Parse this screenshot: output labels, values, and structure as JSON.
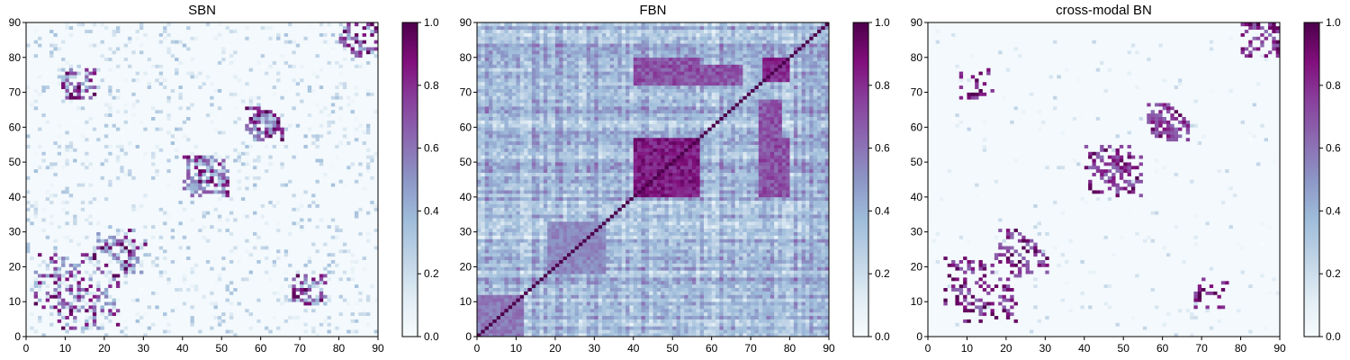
{
  "colormap": [
    "#f7fcfd",
    "#e0ecf4",
    "#bfd3e6",
    "#9ebcda",
    "#8c96c6",
    "#8c6bb1",
    "#88419d",
    "#810f7c",
    "#4d004b"
  ],
  "chart_data": [
    {
      "type": "heatmap",
      "title": "SBN",
      "matrix_size": 90,
      "xlim": [
        0,
        90
      ],
      "ylim": [
        0,
        90
      ],
      "xticks": [
        "0",
        "10",
        "20",
        "30",
        "40",
        "50",
        "60",
        "70",
        "80",
        "90"
      ],
      "yticks": [
        "0",
        "10",
        "20",
        "30",
        "40",
        "50",
        "60",
        "70",
        "80",
        "90"
      ],
      "colorbar": {
        "range": [
          0,
          1
        ],
        "ticks": [
          "0.0",
          "0.2",
          "0.4",
          "0.6",
          "0.8",
          "1.0"
        ]
      },
      "pattern": "sparse",
      "background_value": 0.02,
      "noise_density": 0.14,
      "noise_max": 0.35,
      "clusters": [
        {
          "x": 45,
          "y": 46,
          "r": 5,
          "density": 0.35,
          "min": 0.2,
          "max": 1.0
        },
        {
          "x": 13,
          "y": 72,
          "r": 4,
          "density": 0.5,
          "min": 0.3,
          "max": 1.0
        },
        {
          "x": 10,
          "y": 15,
          "r": 8,
          "density": 0.35,
          "min": 0.1,
          "max": 1.0
        },
        {
          "x": 60,
          "y": 62,
          "r": 4,
          "density": 0.4,
          "min": 0.2,
          "max": 1.0
        },
        {
          "x": 72,
          "y": 12,
          "r": 3,
          "density": 0.4,
          "min": 0.2,
          "max": 0.8
        },
        {
          "x": 85,
          "y": 85,
          "r": 5,
          "density": 0.3,
          "min": 0.2,
          "max": 1.0
        },
        {
          "x": 22,
          "y": 25,
          "r": 5,
          "density": 0.35,
          "min": 0.2,
          "max": 1.0
        }
      ],
      "seed": 7
    },
    {
      "type": "heatmap",
      "title": "FBN",
      "matrix_size": 90,
      "xlim": [
        0,
        90
      ],
      "ylim": [
        0,
        90
      ],
      "xticks": [
        "0",
        "10",
        "20",
        "30",
        "40",
        "50",
        "60",
        "70",
        "80",
        "90"
      ],
      "yticks": [
        "0",
        "10",
        "20",
        "30",
        "40",
        "50",
        "60",
        "70",
        "80",
        "90"
      ],
      "colorbar": {
        "range": [
          0,
          1
        ],
        "ticks": [
          "0.0",
          "0.2",
          "0.4",
          "0.6",
          "0.8",
          "1.0"
        ]
      },
      "pattern": "dense",
      "diagonal_value": 1.0,
      "blocks": [
        {
          "from": 40,
          "to": 57,
          "value": 0.95
        },
        {
          "from": 73,
          "to": 80,
          "value": 0.9
        },
        {
          "from": 0,
          "to": 12,
          "value": 0.65
        },
        {
          "from": 18,
          "to": 33,
          "value": 0.6
        }
      ],
      "bands": [
        {
          "y_from": 72,
          "y_to": 78,
          "x_from": 40,
          "x_to": 68,
          "value": 0.75
        },
        {
          "y_from": 40,
          "y_to": 57,
          "x_from": 72,
          "x_to": 80,
          "value": 0.75
        }
      ],
      "base_range": [
        0.05,
        0.7
      ],
      "seed": 11
    },
    {
      "type": "heatmap",
      "title": "cross-modal BN",
      "matrix_size": 90,
      "xlim": [
        0,
        90
      ],
      "ylim": [
        0,
        90
      ],
      "xticks": [
        "0",
        "10",
        "20",
        "30",
        "40",
        "50",
        "60",
        "70",
        "80",
        "90"
      ],
      "yticks": [
        "0",
        "10",
        "20",
        "30",
        "40",
        "50",
        "60",
        "70",
        "80",
        "90"
      ],
      "colorbar": {
        "range": [
          0,
          1
        ],
        "ticks": [
          "0.0",
          "0.2",
          "0.4",
          "0.6",
          "0.8",
          "1.0"
        ]
      },
      "pattern": "sparse",
      "background_value": 0.02,
      "noise_density": 0.03,
      "noise_max": 0.25,
      "clusters": [
        {
          "x": 46,
          "y": 48,
          "r": 6,
          "density": 0.3,
          "min": 0.6,
          "max": 1.0
        },
        {
          "x": 12,
          "y": 72,
          "r": 4,
          "density": 0.35,
          "min": 0.7,
          "max": 1.0
        },
        {
          "x": 12,
          "y": 15,
          "r": 8,
          "density": 0.2,
          "min": 0.6,
          "max": 1.0
        },
        {
          "x": 60,
          "y": 62,
          "r": 4,
          "density": 0.35,
          "min": 0.6,
          "max": 1.0
        },
        {
          "x": 85,
          "y": 85,
          "r": 5,
          "density": 0.2,
          "min": 0.6,
          "max": 1.0
        },
        {
          "x": 22,
          "y": 25,
          "r": 5,
          "density": 0.2,
          "min": 0.6,
          "max": 1.0
        }
      ],
      "seed": 23
    }
  ]
}
